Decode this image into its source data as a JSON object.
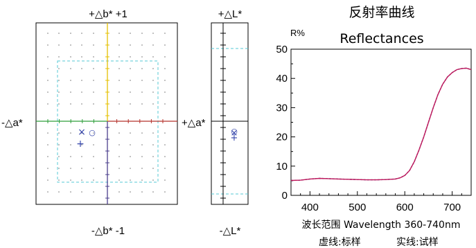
{
  "colorimetry": {
    "b_plus_label": "+△b*  +1",
    "b_minus_label": "-△b*  -1",
    "a_minus_label": "-△a*",
    "a_plus_label": "+△a*",
    "l_plus_label": "+△L*",
    "l_minus_label": "-△L*",
    "standard_marker": "×",
    "sample_marker": "+",
    "circle_marker": "○"
  },
  "reflectance": {
    "title_cn": "反射率曲线",
    "title_en": "Reflectances",
    "ylabel": "R%",
    "xlabel": "波长范围 Wavelength 360-740nm",
    "legend_dashed": "虚线:标样",
    "legend_solid": "实线:试样"
  },
  "chart_data": [
    {
      "type": "scatter",
      "title": "",
      "xlabel": "△a*",
      "ylabel": "△b*",
      "xlim": [
        -1,
        1
      ],
      "ylim": [
        -1,
        1
      ],
      "tolerance_box": {
        "x": [
          -0.6,
          0.6
        ],
        "y": [
          -0.6,
          0.6
        ]
      },
      "series": [
        {
          "name": "",
          "marker": "x",
          "x": [
            -0.32
          ],
          "y": [
            -0.12
          ]
        },
        {
          "name": "",
          "marker": "o",
          "x": [
            -0.18
          ],
          "y": [
            -0.12
          ]
        },
        {
          "name": "",
          "marker": "+",
          "x": [
            -0.33
          ],
          "y": [
            -0.28
          ]
        }
      ],
      "grid": true
    },
    {
      "type": "scatter",
      "title": "",
      "ylabel": "△L*",
      "ylim": [
        -1,
        1
      ],
      "tolerance_band": [
        -0.8,
        0.8
      ],
      "series": [
        {
          "name": "",
          "marker": "o",
          "y": [
            -0.1
          ]
        },
        {
          "name": "",
          "marker": "x",
          "y": [
            -0.12
          ]
        },
        {
          "name": "",
          "marker": "+",
          "y": [
            -0.18
          ]
        }
      ]
    },
    {
      "type": "line",
      "title": "Reflectances",
      "xlabel": "波长范围 Wavelength 360-740nm",
      "ylabel": "R%",
      "xlim": [
        360,
        740
      ],
      "ylim": [
        0,
        50
      ],
      "xticks": [
        400,
        500,
        600,
        700
      ],
      "yticks": [
        0,
        10,
        20,
        30,
        40,
        50
      ],
      "x": [
        360,
        380,
        400,
        420,
        440,
        460,
        480,
        500,
        520,
        540,
        560,
        580,
        590,
        600,
        610,
        620,
        630,
        640,
        650,
        660,
        670,
        680,
        690,
        700,
        710,
        720,
        730,
        740
      ],
      "series": [
        {
          "name": "虚线:标样",
          "style": "dashed",
          "color": "#1a237e",
          "values": [
            5.1,
            5.2,
            5.6,
            5.8,
            5.7,
            5.6,
            5.5,
            5.4,
            5.3,
            5.3,
            5.4,
            5.6,
            6.0,
            6.8,
            8.5,
            11.5,
            15.5,
            20.0,
            25.0,
            30.0,
            34.5,
            38.0,
            40.5,
            42.0,
            43.0,
            43.4,
            43.5,
            43.0
          ]
        },
        {
          "name": "实线:试样",
          "style": "solid",
          "color": "#c2185b",
          "values": [
            5.1,
            5.2,
            5.6,
            5.8,
            5.7,
            5.6,
            5.5,
            5.4,
            5.3,
            5.3,
            5.4,
            5.6,
            6.0,
            6.8,
            8.5,
            11.5,
            15.5,
            20.0,
            25.0,
            30.0,
            34.5,
            38.0,
            40.5,
            42.0,
            43.0,
            43.4,
            43.5,
            43.0
          ]
        }
      ]
    }
  ],
  "colors": {
    "grid_dot": "#777777",
    "a_minus_axis": "#2e9e3a",
    "a_plus_axis": "#b5302a",
    "b_plus_axis": "#e4c000",
    "b_minus_axis": "#4a3f8c",
    "tolerance": "#55c8d6",
    "marker": "#3344aa",
    "curve_solid": "#c2185b",
    "curve_dashed": "#1a237e"
  }
}
